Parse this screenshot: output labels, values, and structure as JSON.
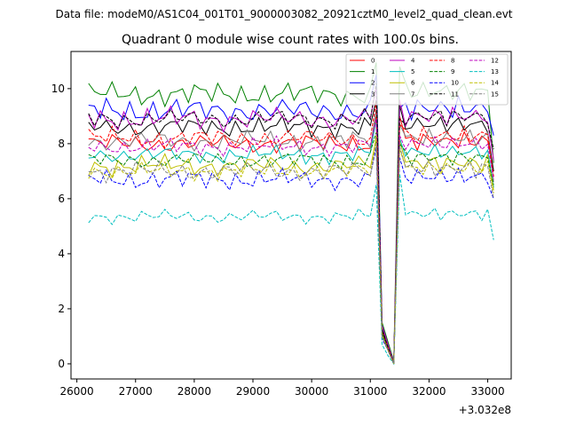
{
  "chart_data": {
    "type": "line",
    "suptitle": "Data file: modeM0/AS1C04_001T01_9000003082_20921cztM0_level2_quad_clean.evt",
    "title": "Quadrant 0 module wise count rates with 100.0s bins.",
    "xlabel": "",
    "ylabel": "",
    "x_offset_label": "+3.032e8",
    "xlim": [
      25900,
      33400
    ],
    "ylim": [
      -0.55,
      11.35
    ],
    "xticks": [
      26000,
      27000,
      28000,
      29000,
      30000,
      31000,
      32000,
      33000
    ],
    "xtick_labels": [
      "26000",
      "27000",
      "28000",
      "29000",
      "30000",
      "31000",
      "32000",
      "33000"
    ],
    "yticks": [
      0,
      2,
      4,
      6,
      8,
      10
    ],
    "ytick_labels": [
      "0",
      "2",
      "4",
      "6",
      "8",
      "10"
    ],
    "x_start": 26200,
    "x_step": 100,
    "dip": {
      "x": [
        31200,
        31300,
        31400,
        31500
      ],
      "levels": [
        [
          1.3,
          0.7,
          0.05,
          9.0
        ],
        [
          1.5,
          0.8,
          0.1,
          10.8
        ],
        [
          1.4,
          0.7,
          0.05,
          9.3
        ],
        [
          1.3,
          0.6,
          0.0,
          9.4
        ],
        [
          1.4,
          0.7,
          0.05,
          9.6
        ],
        [
          1.2,
          0.6,
          0.0,
          8.2
        ],
        [
          1.1,
          0.6,
          0.0,
          8.1
        ],
        [
          1.0,
          0.5,
          0.0,
          8.7
        ],
        [
          1.2,
          0.6,
          0.0,
          8.7
        ],
        [
          1.1,
          0.5,
          0.0,
          8.0
        ],
        [
          0.9,
          0.5,
          0.0,
          7.5
        ],
        [
          1.2,
          0.6,
          0.0,
          8.9
        ],
        [
          1.0,
          0.5,
          0.0,
          8.3
        ],
        [
          0.7,
          0.3,
          0.0,
          6.9
        ],
        [
          1.0,
          0.5,
          0.0,
          7.8
        ],
        [
          1.0,
          0.5,
          0.0,
          7.9
        ]
      ]
    },
    "legend": {
      "location": "top-right",
      "columns": 4
    },
    "series": [
      {
        "name": "0",
        "color": "#ff0000",
        "style": "solid",
        "base": 8.0,
        "amp": 0.35,
        "end": 7.0,
        "phase": 0.3
      },
      {
        "name": "1",
        "color": "#008000",
        "style": "solid",
        "base": 9.8,
        "amp": 0.4,
        "end": 7.3,
        "phase": 1.1
      },
      {
        "name": "2",
        "color": "#0000ff",
        "style": "solid",
        "base": 9.2,
        "amp": 0.45,
        "end": 8.3,
        "phase": 2.0
      },
      {
        "name": "3",
        "color": "#000000",
        "style": "solid",
        "base": 8.6,
        "amp": 0.35,
        "end": 7.0,
        "phase": 2.7
      },
      {
        "name": "4",
        "color": "#bf00bf",
        "style": "solid",
        "base": 8.9,
        "amp": 0.4,
        "end": 7.4,
        "phase": 3.5
      },
      {
        "name": "5",
        "color": "#00bfbf",
        "style": "solid",
        "base": 7.6,
        "amp": 0.3,
        "end": 6.4,
        "phase": 4.1
      },
      {
        "name": "6",
        "color": "#bfbf00",
        "style": "solid",
        "base": 7.2,
        "amp": 0.35,
        "end": 6.3,
        "phase": 4.8
      },
      {
        "name": "7",
        "color": "#808080",
        "style": "solid",
        "base": 8.1,
        "amp": 0.35,
        "end": 6.6,
        "phase": 5.6
      },
      {
        "name": "8",
        "color": "#ff0000",
        "style": "dashed",
        "base": 8.2,
        "amp": 0.35,
        "end": 6.8,
        "phase": 0.7
      },
      {
        "name": "9",
        "color": "#008000",
        "style": "dashed",
        "base": 7.4,
        "amp": 0.3,
        "end": 6.5,
        "phase": 1.6
      },
      {
        "name": "10",
        "color": "#0000ff",
        "style": "dashed",
        "base": 6.7,
        "amp": 0.35,
        "end": 6.0,
        "phase": 2.4
      },
      {
        "name": "11",
        "color": "#000000",
        "style": "dashed",
        "base": 8.9,
        "amp": 0.35,
        "end": 7.8,
        "phase": 3.1
      },
      {
        "name": "12",
        "color": "#bf00bf",
        "style": "dashed",
        "base": 7.9,
        "amp": 0.3,
        "end": 6.7,
        "phase": 3.9
      },
      {
        "name": "13",
        "color": "#00bfbf",
        "style": "dashed",
        "base": 5.35,
        "amp": 0.25,
        "end": 4.5,
        "phase": 4.5
      },
      {
        "name": "14",
        "color": "#bfbf00",
        "style": "dashed",
        "base": 7.0,
        "amp": 0.3,
        "end": 6.2,
        "phase": 5.2
      },
      {
        "name": "15",
        "color": "#808080",
        "style": "dashed",
        "base": 7.0,
        "amp": 0.35,
        "end": 6.0,
        "phase": 6.0
      }
    ]
  }
}
